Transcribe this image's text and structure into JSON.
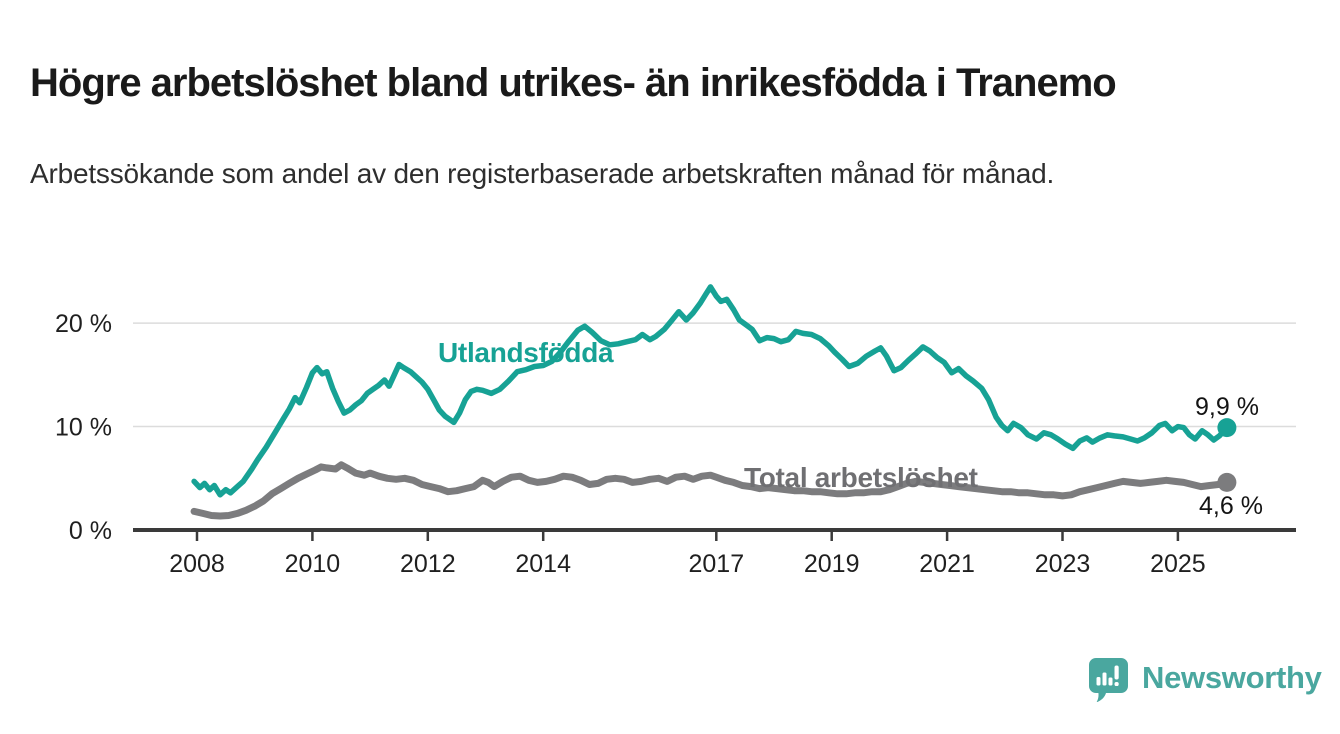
{
  "header": {
    "title": "Högre arbetslöshet bland utrikes- än inrikesfödda i Tranemo",
    "subtitle": "Arbetssökande som andel av den registerbaserade arbetskraften månad för månad."
  },
  "branding": {
    "logo_icon": "newsworthy-speech-bubble-barchart-icon",
    "logo_text": "Newsworthy",
    "brand_color": "#4aa79f"
  },
  "chart_data": {
    "type": "line",
    "title": "Högre arbetslöshet bland utrikes- än inrikesfödda i Tranemo",
    "xlabel": "",
    "ylabel": "",
    "grid": "horizontal-only",
    "legend_position": "inline-labels-on-lines",
    "x_axis": {
      "ticks": [
        2008,
        2010,
        2012,
        2014,
        2017,
        2019,
        2021,
        2023,
        2025
      ],
      "labels": [
        "2008",
        "2010",
        "2012",
        "2014",
        "2017",
        "2019",
        "2021",
        "2023",
        "2025"
      ],
      "range": [
        2007.6,
        2026.1
      ]
    },
    "y_axis": {
      "ticks": [
        0,
        10,
        20
      ],
      "labels": [
        "0 %",
        "10 %",
        "20 %"
      ],
      "range": [
        0,
        24.5
      ],
      "unit": "%"
    },
    "style": {
      "axis_color": "#3a3a3a",
      "grid_color": "#dcdcdc",
      "tick_label_color": "#1f1f1f"
    },
    "series": [
      {
        "id": "utlandsfodda",
        "name": "Utlandsfödda",
        "color": "#17a295",
        "label_color": "#17a295",
        "width": 5.5,
        "end_label": "9,9 %",
        "end_value": 9.9,
        "points": [
          [
            2007.95,
            4.7
          ],
          [
            2008.05,
            4.1
          ],
          [
            2008.13,
            4.5
          ],
          [
            2008.22,
            3.9
          ],
          [
            2008.3,
            4.3
          ],
          [
            2008.4,
            3.4
          ],
          [
            2008.5,
            3.9
          ],
          [
            2008.58,
            3.6
          ],
          [
            2008.7,
            4.2
          ],
          [
            2008.8,
            4.7
          ],
          [
            2008.95,
            5.9
          ],
          [
            2009.05,
            6.8
          ],
          [
            2009.2,
            8.0
          ],
          [
            2009.35,
            9.4
          ],
          [
            2009.5,
            10.8
          ],
          [
            2009.6,
            11.7
          ],
          [
            2009.7,
            12.8
          ],
          [
            2009.78,
            12.3
          ],
          [
            2009.9,
            13.8
          ],
          [
            2010.0,
            15.2
          ],
          [
            2010.08,
            15.7
          ],
          [
            2010.17,
            15.1
          ],
          [
            2010.25,
            15.3
          ],
          [
            2010.35,
            13.7
          ],
          [
            2010.45,
            12.4
          ],
          [
            2010.55,
            11.3
          ],
          [
            2010.65,
            11.6
          ],
          [
            2010.75,
            12.1
          ],
          [
            2010.85,
            12.5
          ],
          [
            2010.95,
            13.2
          ],
          [
            2011.05,
            13.6
          ],
          [
            2011.15,
            14.0
          ],
          [
            2011.25,
            14.5
          ],
          [
            2011.33,
            13.9
          ],
          [
            2011.42,
            15.0
          ],
          [
            2011.5,
            16.0
          ],
          [
            2011.58,
            15.7
          ],
          [
            2011.7,
            15.3
          ],
          [
            2011.8,
            14.8
          ],
          [
            2011.9,
            14.3
          ],
          [
            2012.0,
            13.6
          ],
          [
            2012.1,
            12.6
          ],
          [
            2012.2,
            11.6
          ],
          [
            2012.3,
            11.0
          ],
          [
            2012.45,
            10.4
          ],
          [
            2012.55,
            11.3
          ],
          [
            2012.65,
            12.6
          ],
          [
            2012.75,
            13.4
          ],
          [
            2012.85,
            13.6
          ],
          [
            2012.95,
            13.5
          ],
          [
            2013.1,
            13.2
          ],
          [
            2013.25,
            13.6
          ],
          [
            2013.4,
            14.4
          ],
          [
            2013.55,
            15.3
          ],
          [
            2013.7,
            15.5
          ],
          [
            2013.85,
            15.8
          ],
          [
            2014.0,
            15.9
          ],
          [
            2014.15,
            16.3
          ],
          [
            2014.3,
            17.2
          ],
          [
            2014.45,
            18.3
          ],
          [
            2014.6,
            19.3
          ],
          [
            2014.72,
            19.7
          ],
          [
            2014.85,
            19.1
          ],
          [
            2015.0,
            18.3
          ],
          [
            2015.15,
            17.9
          ],
          [
            2015.3,
            18.0
          ],
          [
            2015.45,
            18.2
          ],
          [
            2015.6,
            18.4
          ],
          [
            2015.72,
            18.9
          ],
          [
            2015.85,
            18.4
          ],
          [
            2015.95,
            18.7
          ],
          [
            2016.1,
            19.4
          ],
          [
            2016.22,
            20.2
          ],
          [
            2016.35,
            21.1
          ],
          [
            2016.48,
            20.3
          ],
          [
            2016.6,
            21.0
          ],
          [
            2016.72,
            21.9
          ],
          [
            2016.82,
            22.8
          ],
          [
            2016.9,
            23.5
          ],
          [
            2017.0,
            22.6
          ],
          [
            2017.08,
            22.1
          ],
          [
            2017.18,
            22.3
          ],
          [
            2017.3,
            21.3
          ],
          [
            2017.4,
            20.3
          ],
          [
            2017.5,
            19.9
          ],
          [
            2017.62,
            19.4
          ],
          [
            2017.75,
            18.3
          ],
          [
            2017.88,
            18.6
          ],
          [
            2018.0,
            18.5
          ],
          [
            2018.12,
            18.2
          ],
          [
            2018.25,
            18.4
          ],
          [
            2018.38,
            19.2
          ],
          [
            2018.5,
            19.0
          ],
          [
            2018.65,
            18.9
          ],
          [
            2018.8,
            18.5
          ],
          [
            2018.95,
            17.8
          ],
          [
            2019.05,
            17.2
          ],
          [
            2019.18,
            16.5
          ],
          [
            2019.3,
            15.8
          ],
          [
            2019.45,
            16.1
          ],
          [
            2019.6,
            16.8
          ],
          [
            2019.75,
            17.3
          ],
          [
            2019.85,
            17.6
          ],
          [
            2019.95,
            16.8
          ],
          [
            2020.08,
            15.4
          ],
          [
            2020.2,
            15.7
          ],
          [
            2020.33,
            16.4
          ],
          [
            2020.45,
            17.0
          ],
          [
            2020.58,
            17.7
          ],
          [
            2020.7,
            17.3
          ],
          [
            2020.82,
            16.7
          ],
          [
            2020.95,
            16.2
          ],
          [
            2021.08,
            15.2
          ],
          [
            2021.2,
            15.6
          ],
          [
            2021.33,
            14.9
          ],
          [
            2021.45,
            14.4
          ],
          [
            2021.6,
            13.7
          ],
          [
            2021.72,
            12.6
          ],
          [
            2021.85,
            10.9
          ],
          [
            2021.95,
            10.1
          ],
          [
            2022.05,
            9.6
          ],
          [
            2022.15,
            10.3
          ],
          [
            2022.28,
            9.9
          ],
          [
            2022.4,
            9.2
          ],
          [
            2022.55,
            8.8
          ],
          [
            2022.68,
            9.4
          ],
          [
            2022.8,
            9.2
          ],
          [
            2022.92,
            8.8
          ],
          [
            2023.05,
            8.3
          ],
          [
            2023.18,
            7.9
          ],
          [
            2023.3,
            8.6
          ],
          [
            2023.42,
            8.9
          ],
          [
            2023.52,
            8.5
          ],
          [
            2023.65,
            8.9
          ],
          [
            2023.78,
            9.2
          ],
          [
            2023.9,
            9.1
          ],
          [
            2024.05,
            9.0
          ],
          [
            2024.18,
            8.8
          ],
          [
            2024.3,
            8.6
          ],
          [
            2024.42,
            8.9
          ],
          [
            2024.55,
            9.4
          ],
          [
            2024.68,
            10.1
          ],
          [
            2024.78,
            10.3
          ],
          [
            2024.9,
            9.6
          ],
          [
            2025.0,
            10.0
          ],
          [
            2025.1,
            9.9
          ],
          [
            2025.2,
            9.2
          ],
          [
            2025.3,
            8.8
          ],
          [
            2025.42,
            9.6
          ],
          [
            2025.52,
            9.2
          ],
          [
            2025.62,
            8.7
          ],
          [
            2025.72,
            9.1
          ],
          [
            2025.85,
            9.9
          ]
        ]
      },
      {
        "id": "total",
        "name": "Total arbetslöshet",
        "color": "#7c7c7e",
        "label_color": "#6f6f72",
        "width": 7,
        "end_label": "4,6 %",
        "end_value": 4.6,
        "points": [
          [
            2007.95,
            1.8
          ],
          [
            2008.1,
            1.6
          ],
          [
            2008.25,
            1.4
          ],
          [
            2008.4,
            1.35
          ],
          [
            2008.55,
            1.4
          ],
          [
            2008.7,
            1.6
          ],
          [
            2008.85,
            1.9
          ],
          [
            2009.0,
            2.3
          ],
          [
            2009.15,
            2.8
          ],
          [
            2009.3,
            3.5
          ],
          [
            2009.45,
            4.0
          ],
          [
            2009.6,
            4.5
          ],
          [
            2009.75,
            5.0
          ],
          [
            2009.9,
            5.4
          ],
          [
            2010.05,
            5.8
          ],
          [
            2010.15,
            6.1
          ],
          [
            2010.25,
            6.0
          ],
          [
            2010.4,
            5.9
          ],
          [
            2010.5,
            6.3
          ],
          [
            2010.6,
            6.0
          ],
          [
            2010.75,
            5.5
          ],
          [
            2010.9,
            5.3
          ],
          [
            2011.0,
            5.5
          ],
          [
            2011.15,
            5.2
          ],
          [
            2011.3,
            5.0
          ],
          [
            2011.45,
            4.9
          ],
          [
            2011.6,
            5.0
          ],
          [
            2011.75,
            4.8
          ],
          [
            2011.9,
            4.4
          ],
          [
            2012.05,
            4.2
          ],
          [
            2012.2,
            4.0
          ],
          [
            2012.35,
            3.7
          ],
          [
            2012.5,
            3.8
          ],
          [
            2012.65,
            4.0
          ],
          [
            2012.8,
            4.2
          ],
          [
            2012.95,
            4.8
          ],
          [
            2013.05,
            4.6
          ],
          [
            2013.15,
            4.2
          ],
          [
            2013.3,
            4.7
          ],
          [
            2013.45,
            5.1
          ],
          [
            2013.6,
            5.2
          ],
          [
            2013.75,
            4.8
          ],
          [
            2013.9,
            4.6
          ],
          [
            2014.05,
            4.7
          ],
          [
            2014.2,
            4.9
          ],
          [
            2014.35,
            5.2
          ],
          [
            2014.5,
            5.1
          ],
          [
            2014.65,
            4.8
          ],
          [
            2014.8,
            4.4
          ],
          [
            2014.95,
            4.5
          ],
          [
            2015.1,
            4.9
          ],
          [
            2015.25,
            5.0
          ],
          [
            2015.4,
            4.9
          ],
          [
            2015.55,
            4.6
          ],
          [
            2015.7,
            4.7
          ],
          [
            2015.85,
            4.9
          ],
          [
            2016.0,
            5.0
          ],
          [
            2016.15,
            4.7
          ],
          [
            2016.3,
            5.1
          ],
          [
            2016.45,
            5.2
          ],
          [
            2016.6,
            4.9
          ],
          [
            2016.75,
            5.2
          ],
          [
            2016.9,
            5.3
          ],
          [
            2017.0,
            5.1
          ],
          [
            2017.15,
            4.8
          ],
          [
            2017.3,
            4.6
          ],
          [
            2017.45,
            4.3
          ],
          [
            2017.6,
            4.2
          ],
          [
            2017.75,
            4.0
          ],
          [
            2017.9,
            4.1
          ],
          [
            2018.05,
            4.0
          ],
          [
            2018.2,
            3.9
          ],
          [
            2018.35,
            3.8
          ],
          [
            2018.5,
            3.8
          ],
          [
            2018.65,
            3.7
          ],
          [
            2018.8,
            3.7
          ],
          [
            2018.95,
            3.6
          ],
          [
            2019.1,
            3.5
          ],
          [
            2019.25,
            3.5
          ],
          [
            2019.4,
            3.6
          ],
          [
            2019.55,
            3.6
          ],
          [
            2019.7,
            3.7
          ],
          [
            2019.85,
            3.7
          ],
          [
            2020.0,
            3.9
          ],
          [
            2020.15,
            4.2
          ],
          [
            2020.3,
            4.5
          ],
          [
            2020.45,
            4.7
          ],
          [
            2020.6,
            4.6
          ],
          [
            2020.75,
            4.5
          ],
          [
            2020.9,
            4.4
          ],
          [
            2021.05,
            4.3
          ],
          [
            2021.2,
            4.2
          ],
          [
            2021.35,
            4.1
          ],
          [
            2021.5,
            4.0
          ],
          [
            2021.65,
            3.9
          ],
          [
            2021.8,
            3.8
          ],
          [
            2021.95,
            3.7
          ],
          [
            2022.1,
            3.7
          ],
          [
            2022.25,
            3.6
          ],
          [
            2022.4,
            3.6
          ],
          [
            2022.55,
            3.5
          ],
          [
            2022.7,
            3.4
          ],
          [
            2022.85,
            3.4
          ],
          [
            2023.0,
            3.3
          ],
          [
            2023.15,
            3.4
          ],
          [
            2023.3,
            3.7
          ],
          [
            2023.45,
            3.9
          ],
          [
            2023.6,
            4.1
          ],
          [
            2023.75,
            4.3
          ],
          [
            2023.9,
            4.5
          ],
          [
            2024.05,
            4.7
          ],
          [
            2024.2,
            4.6
          ],
          [
            2024.35,
            4.5
          ],
          [
            2024.5,
            4.6
          ],
          [
            2024.65,
            4.7
          ],
          [
            2024.8,
            4.8
          ],
          [
            2024.95,
            4.7
          ],
          [
            2025.1,
            4.6
          ],
          [
            2025.25,
            4.4
          ],
          [
            2025.4,
            4.2
          ],
          [
            2025.55,
            4.3
          ],
          [
            2025.7,
            4.4
          ],
          [
            2025.85,
            4.6
          ]
        ]
      }
    ]
  }
}
